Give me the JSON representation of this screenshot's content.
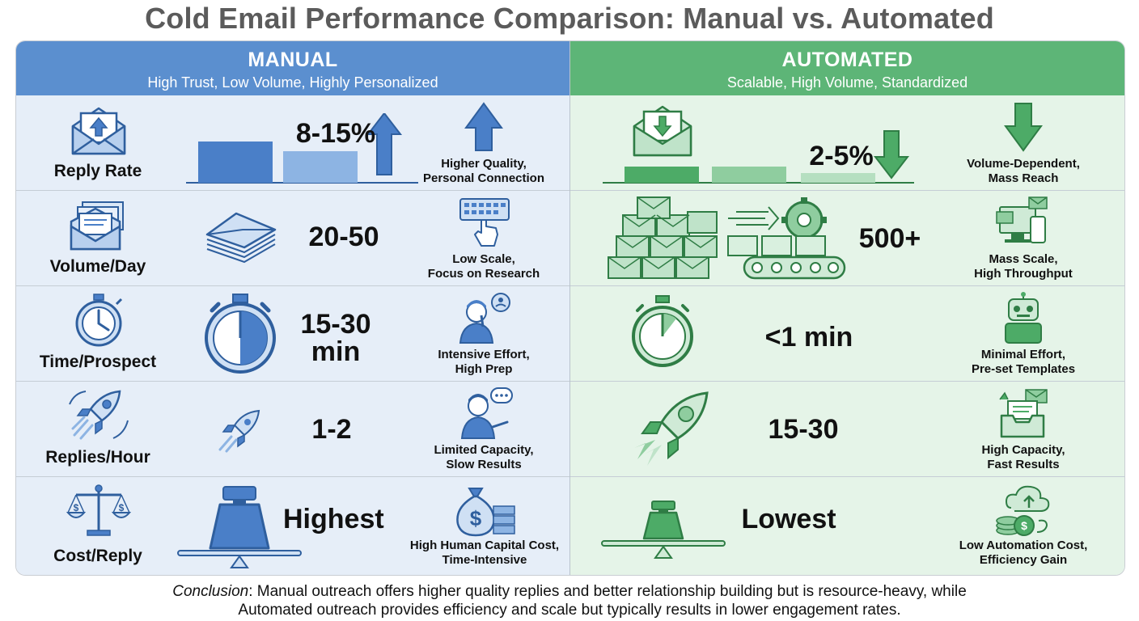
{
  "title": "Cold Email Performance Comparison: Manual vs. Automated",
  "columns": {
    "manual": {
      "heading": "MANUAL",
      "subheading": "High Trust, Low Volume, Highly Personalized"
    },
    "automated": {
      "heading": "AUTOMATED",
      "subheading": "Scalable, High Volume, Standardized"
    }
  },
  "rows": [
    {
      "metric": "Reply Rate",
      "metric_icon": "open-envelope-upload-icon",
      "manual_value": "8-15%",
      "manual_note": [
        "Higher Quality,",
        "Personal Connection"
      ],
      "automated_value": "2-5%",
      "automated_note": [
        "Volume-Dependent,",
        "Mass Reach"
      ]
    },
    {
      "metric": "Volume/Day",
      "metric_icon": "stacked-envelopes-icon",
      "manual_value": "20-50",
      "manual_note": [
        "Low Scale,",
        "Focus on Research"
      ],
      "automated_value": "500+",
      "automated_note": [
        "Mass Scale,",
        "High Throughput"
      ]
    },
    {
      "metric": "Time/Prospect",
      "metric_icon": "stopwatch-icon",
      "manual_value": [
        "15-30",
        "min"
      ],
      "manual_note": [
        "Intensive Effort,",
        "High Prep"
      ],
      "automated_value": "<1 min",
      "automated_note": [
        "Minimal Effort,",
        "Pre-set Templates"
      ]
    },
    {
      "metric": "Replies/Hour",
      "metric_icon": "rocket-icon",
      "manual_value": "1-2",
      "manual_note": [
        "Limited Capacity,",
        "Slow Results"
      ],
      "automated_value": "15-30",
      "automated_note": [
        "High Capacity,",
        "Fast Results"
      ]
    },
    {
      "metric": "Cost/Reply",
      "metric_icon": "balance-scale-icon",
      "manual_value": "Highest",
      "manual_note": [
        "High Human Capital Cost,",
        "Time-Intensive"
      ],
      "automated_value": "Lowest",
      "automated_note": [
        "Low Automation Cost,",
        "Efficiency Gain"
      ]
    }
  ],
  "conclusion": {
    "lead": "Conclusion",
    "line1": ": Manual outreach offers higher quality replies and better relationship building but is resource-heavy, while",
    "line2": "Automated outreach provides efficiency and scale but typically results in lower engagement rates."
  },
  "colors": {
    "manual_header": "#5b8fcf",
    "automated_header": "#5db577",
    "manual_bg": "#e6eef8",
    "automated_bg": "#e5f4e8",
    "blue": "#4a7fc8",
    "green": "#4dab67"
  }
}
